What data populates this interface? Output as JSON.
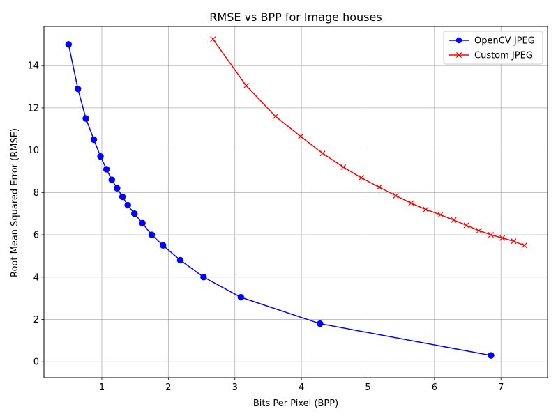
{
  "chart_data": {
    "type": "line",
    "title": "RMSE vs BPP for Image houses",
    "xlabel": "Bits Per Pixel (BPP)",
    "ylabel": "Root Mean Squared Error (RMSE)",
    "xlim": [
      0.13,
      7.7
    ],
    "ylim": [
      -0.75,
      15.85
    ],
    "xticks": [
      1,
      2,
      3,
      4,
      5,
      6,
      7
    ],
    "yticks": [
      0,
      2,
      4,
      6,
      8,
      10,
      12,
      14
    ],
    "grid": true,
    "legend_position": "top-right",
    "series": [
      {
        "name": "OpenCV JPEG",
        "color": "#0000ff",
        "marker": "circle",
        "x": [
          0.5,
          0.64,
          0.76,
          0.88,
          0.98,
          1.07,
          1.15,
          1.23,
          1.31,
          1.39,
          1.49,
          1.61,
          1.75,
          1.92,
          2.18,
          2.53,
          3.09,
          4.28,
          6.85
        ],
        "y": [
          15.0,
          12.9,
          11.5,
          10.5,
          9.7,
          9.1,
          8.6,
          8.2,
          7.8,
          7.4,
          7.0,
          6.55,
          6.0,
          5.5,
          4.8,
          4.0,
          3.05,
          1.8,
          0.3
        ]
      },
      {
        "name": "Custom JPEG",
        "color": "#ff0000",
        "marker": "x",
        "x": [
          2.67,
          3.17,
          3.61,
          3.99,
          4.32,
          4.63,
          4.9,
          5.17,
          5.42,
          5.65,
          5.87,
          6.09,
          6.29,
          6.48,
          6.67,
          6.85,
          7.02,
          7.19,
          7.35
        ],
        "y": [
          15.25,
          13.05,
          11.6,
          10.65,
          9.85,
          9.2,
          8.7,
          8.25,
          7.85,
          7.5,
          7.2,
          6.95,
          6.7,
          6.45,
          6.2,
          6.0,
          5.85,
          5.7,
          5.5
        ]
      }
    ]
  }
}
